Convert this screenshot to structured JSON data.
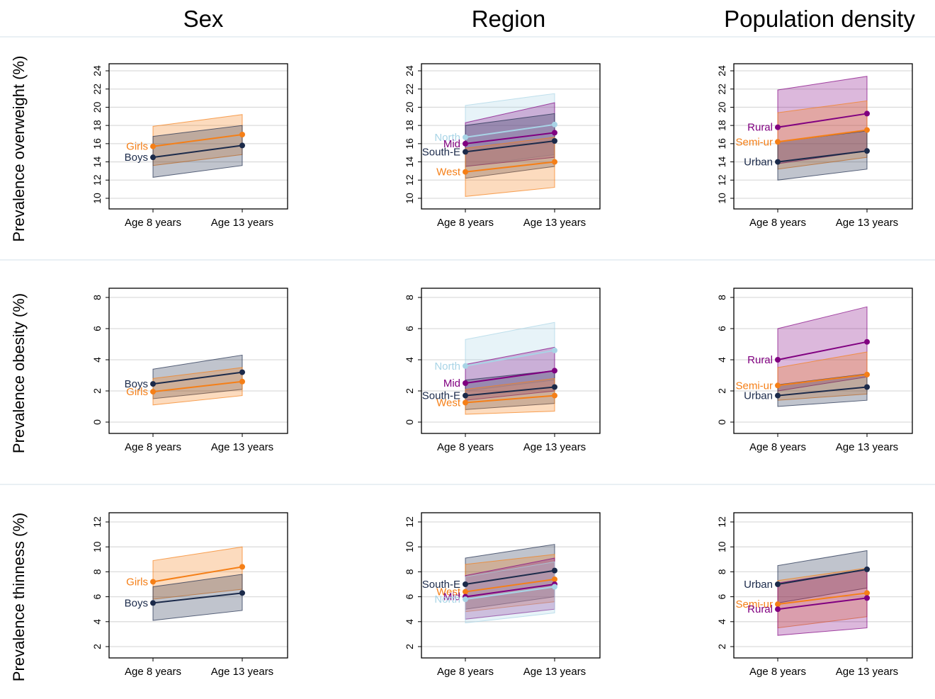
{
  "column_titles": [
    "Sex",
    "Region",
    "Population density"
  ],
  "row_titles": [
    "Prevalence overweight (%)",
    "Prevalence obesity (%)",
    "Prevalence thinness (%)"
  ],
  "colors": {
    "Boys": "#1b2a4a",
    "Girls": "#f57f17",
    "North": "#a8d4e6",
    "Mid": "#800080",
    "South-E": "#1b2a4a",
    "West": "#f57f17",
    "Rural": "#800080",
    "Semi-ur": "#f57f17",
    "Urban": "#1b2a4a"
  },
  "chart_data": [
    {
      "type": "line",
      "row": 0,
      "col": 0,
      "categories": [
        "Age 8 years",
        "Age 13 years"
      ],
      "ylim": [
        10,
        24
      ],
      "yticks": [
        10,
        12,
        14,
        16,
        18,
        20,
        22,
        24
      ],
      "grid": true,
      "series": [
        {
          "name": "Girls",
          "values": [
            15.7,
            17.0
          ],
          "lower": [
            13.6,
            14.8
          ],
          "upper": [
            17.9,
            19.2
          ]
        },
        {
          "name": "Boys",
          "values": [
            14.5,
            15.8
          ],
          "lower": [
            12.3,
            13.6
          ],
          "upper": [
            16.8,
            18.0
          ]
        }
      ]
    },
    {
      "type": "line",
      "row": 0,
      "col": 1,
      "categories": [
        "Age 8 years",
        "Age 13 years"
      ],
      "ylim": [
        10,
        24
      ],
      "yticks": [
        10,
        12,
        14,
        16,
        18,
        20,
        22,
        24
      ],
      "grid": true,
      "series": [
        {
          "name": "North",
          "values": [
            16.7,
            18.1
          ],
          "lower": [
            13.5,
            14.8
          ],
          "upper": [
            20.2,
            21.5
          ]
        },
        {
          "name": "Mid",
          "values": [
            16.0,
            17.2
          ],
          "lower": [
            13.5,
            14.5
          ],
          "upper": [
            18.3,
            20.5
          ]
        },
        {
          "name": "South-E",
          "values": [
            15.1,
            16.3
          ],
          "lower": [
            12.2,
            13.5
          ],
          "upper": [
            18.0,
            19.3
          ]
        },
        {
          "name": "West",
          "values": [
            12.9,
            14.0
          ],
          "lower": [
            10.2,
            11.2
          ],
          "upper": [
            15.5,
            16.7
          ]
        }
      ]
    },
    {
      "type": "line",
      "row": 0,
      "col": 2,
      "categories": [
        "Age 8 years",
        "Age 13 years"
      ],
      "ylim": [
        10,
        24
      ],
      "yticks": [
        10,
        12,
        14,
        16,
        18,
        20,
        22,
        24
      ],
      "grid": true,
      "series": [
        {
          "name": "Rural",
          "values": [
            17.8,
            19.3
          ],
          "lower": [
            13.8,
            15.2
          ],
          "upper": [
            21.9,
            23.4
          ]
        },
        {
          "name": "Semi-ur",
          "values": [
            16.2,
            17.5
          ],
          "lower": [
            13.2,
            14.5
          ],
          "upper": [
            19.4,
            20.7
          ]
        },
        {
          "name": "Urban",
          "values": [
            14.0,
            15.2
          ],
          "lower": [
            12.0,
            13.2
          ],
          "upper": [
            16.2,
            17.4
          ]
        }
      ]
    },
    {
      "type": "line",
      "row": 1,
      "col": 0,
      "categories": [
        "Age 8 years",
        "Age 13 years"
      ],
      "ylim": [
        0,
        8
      ],
      "yticks": [
        0,
        2,
        4,
        6,
        8
      ],
      "grid": true,
      "series": [
        {
          "name": "Boys",
          "values": [
            2.45,
            3.2
          ],
          "lower": [
            1.5,
            2.1
          ],
          "upper": [
            3.4,
            4.3
          ]
        },
        {
          "name": "Girls",
          "values": [
            1.95,
            2.6
          ],
          "lower": [
            1.1,
            1.7
          ],
          "upper": [
            2.8,
            3.5
          ]
        }
      ]
    },
    {
      "type": "line",
      "row": 1,
      "col": 1,
      "categories": [
        "Age 8 years",
        "Age 13 years"
      ],
      "ylim": [
        0,
        8
      ],
      "yticks": [
        0,
        2,
        4,
        6,
        8
      ],
      "grid": true,
      "series": [
        {
          "name": "North",
          "values": [
            3.6,
            4.6
          ],
          "lower": [
            2.0,
            2.7
          ],
          "upper": [
            5.3,
            6.4
          ]
        },
        {
          "name": "Mid",
          "values": [
            2.5,
            3.3
          ],
          "lower": [
            1.4,
            2.0
          ],
          "upper": [
            3.7,
            4.8
          ]
        },
        {
          "name": "South-E",
          "values": [
            1.7,
            2.25
          ],
          "lower": [
            0.8,
            1.2
          ],
          "upper": [
            2.7,
            3.3
          ]
        },
        {
          "name": "West",
          "values": [
            1.25,
            1.7
          ],
          "lower": [
            0.5,
            0.7
          ],
          "upper": [
            2.1,
            2.8
          ]
        }
      ]
    },
    {
      "type": "line",
      "row": 1,
      "col": 2,
      "categories": [
        "Age 8 years",
        "Age 13 years"
      ],
      "ylim": [
        0,
        8
      ],
      "yticks": [
        0,
        2,
        4,
        6,
        8
      ],
      "grid": true,
      "series": [
        {
          "name": "Rural",
          "values": [
            4.0,
            5.15
          ],
          "lower": [
            2.0,
            2.9
          ],
          "upper": [
            6.0,
            7.4
          ]
        },
        {
          "name": "Semi-ur",
          "values": [
            2.35,
            3.05
          ],
          "lower": [
            1.4,
            1.8
          ],
          "upper": [
            3.5,
            4.5
          ]
        },
        {
          "name": "Urban",
          "values": [
            1.7,
            2.25
          ],
          "lower": [
            1.0,
            1.4
          ],
          "upper": [
            2.4,
            3.1
          ]
        }
      ]
    },
    {
      "type": "line",
      "row": 2,
      "col": 0,
      "categories": [
        "Age 8 years",
        "Age 13 years"
      ],
      "ylim": [
        2,
        12
      ],
      "yticks": [
        2,
        4,
        6,
        8,
        10,
        12
      ],
      "grid": true,
      "series": [
        {
          "name": "Girls",
          "values": [
            7.2,
            8.4
          ],
          "lower": [
            5.8,
            6.6
          ],
          "upper": [
            8.9,
            10.0
          ]
        },
        {
          "name": "Boys",
          "values": [
            5.5,
            6.3
          ],
          "lower": [
            4.1,
            4.9
          ],
          "upper": [
            6.8,
            7.8
          ]
        }
      ]
    },
    {
      "type": "line",
      "row": 2,
      "col": 1,
      "categories": [
        "Age 8 years",
        "Age 13 years"
      ],
      "ylim": [
        2,
        12
      ],
      "yticks": [
        2,
        4,
        6,
        8,
        10,
        12
      ],
      "grid": true,
      "series": [
        {
          "name": "South-E",
          "values": [
            7.0,
            8.1
          ],
          "lower": [
            5.0,
            6.0
          ],
          "upper": [
            9.1,
            10.2
          ]
        },
        {
          "name": "West",
          "values": [
            6.4,
            7.4
          ],
          "lower": [
            4.8,
            5.6
          ],
          "upper": [
            8.6,
            9.4
          ]
        },
        {
          "name": "Mid",
          "values": [
            6.0,
            7.0
          ],
          "lower": [
            4.2,
            5.0
          ],
          "upper": [
            7.7,
            9.1
          ]
        },
        {
          "name": "North",
          "values": [
            5.8,
            6.8
          ],
          "lower": [
            3.9,
            4.7
          ],
          "upper": [
            7.6,
            8.8
          ]
        }
      ]
    },
    {
      "type": "line",
      "row": 2,
      "col": 2,
      "categories": [
        "Age 8 years",
        "Age 13 years"
      ],
      "ylim": [
        2,
        12
      ],
      "yticks": [
        2,
        4,
        6,
        8,
        10,
        12
      ],
      "grid": true,
      "series": [
        {
          "name": "Urban",
          "values": [
            7.0,
            8.2
          ],
          "lower": [
            5.5,
            6.7
          ],
          "upper": [
            8.5,
            9.7
          ]
        },
        {
          "name": "Semi-ur",
          "values": [
            5.4,
            6.3
          ],
          "lower": [
            3.5,
            4.4
          ],
          "upper": [
            7.3,
            8.3
          ]
        },
        {
          "name": "Rural",
          "values": [
            5.0,
            5.9
          ],
          "lower": [
            2.9,
            3.5
          ],
          "upper": [
            7.1,
            8.2
          ]
        }
      ]
    }
  ]
}
